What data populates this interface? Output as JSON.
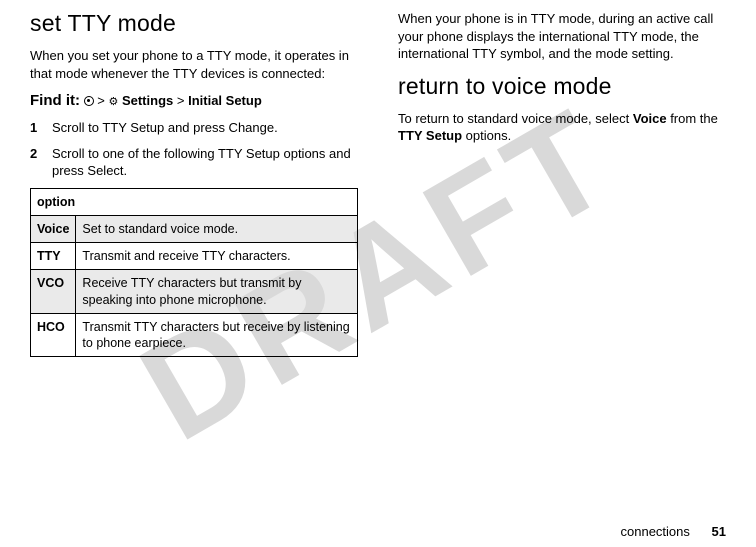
{
  "watermark": "DRAFT",
  "left": {
    "heading": "set TTY mode",
    "intro": "When you set your phone to a TTY mode, it operates in that mode whenever the TTY devices is connected:",
    "findit_label": "Find it:",
    "findit_gt1": ">",
    "findit_settings": "Settings",
    "findit_gt2": ">",
    "findit_initial": "Initial Setup",
    "step1_num": "1",
    "step1_text": "Scroll to TTY Setup and press Change.",
    "step2_num": "2",
    "step2_text": "Scroll to one of the following TTY Setup options and press Select.",
    "table": {
      "header": "option",
      "rows": [
        {
          "name": "Voice",
          "desc": "Set to standard voice mode."
        },
        {
          "name": "TTY",
          "desc": "Transmit and receive TTY characters."
        },
        {
          "name": "VCO",
          "desc": "Receive TTY characters but transmit by speaking into phone microphone."
        },
        {
          "name": "HCO",
          "desc": "Transmit TTY characters but receive by listening to phone earpiece."
        }
      ]
    }
  },
  "right": {
    "para": "When your phone is in TTY mode, during an active call your phone displays the international TTY mode, the international TTY symbol, and the mode setting.",
    "heading": "return to voice mode",
    "ret_pre": "To return to standard voice mode, select ",
    "ret_voice": "Voice",
    "ret_mid": " from the ",
    "ret_tty": "TTY Setup",
    "ret_post": " options."
  },
  "footer": {
    "section": "connections",
    "page": "51"
  }
}
